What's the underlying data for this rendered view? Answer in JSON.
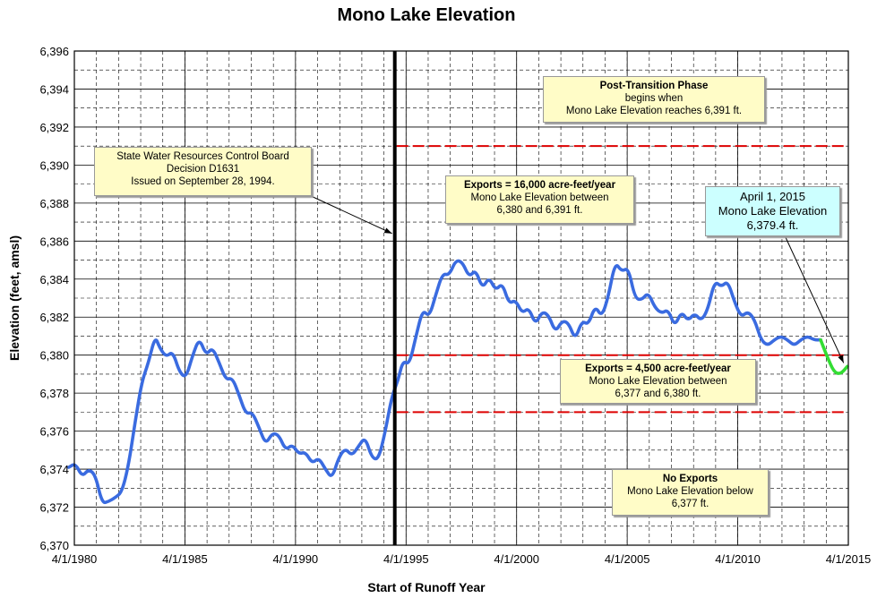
{
  "chart_data": {
    "type": "line",
    "title": "Mono Lake Elevation",
    "xlabel": "Start of Runoff Year",
    "ylabel": "Elevation (feet, amsl)",
    "ylim": [
      6370,
      6396
    ],
    "xlim": [
      1980.25,
      2015.25
    ],
    "grid": true,
    "x_ticks": [
      {
        "x": 1980.25,
        "label": "4/1/1980"
      },
      {
        "x": 1985.25,
        "label": "4/1/1985"
      },
      {
        "x": 1990.25,
        "label": "4/1/1990"
      },
      {
        "x": 1995.25,
        "label": "4/1/1995"
      },
      {
        "x": 2000.25,
        "label": "4/1/2000"
      },
      {
        "x": 2005.25,
        "label": "4/1/2005"
      },
      {
        "x": 2010.25,
        "label": "4/1/2010"
      },
      {
        "x": 2015.25,
        "label": "4/1/2015"
      }
    ],
    "y_ticks": [
      {
        "y": 6370,
        "label": "6,370"
      },
      {
        "y": 6372,
        "label": "6,372"
      },
      {
        "y": 6374,
        "label": "6,374"
      },
      {
        "y": 6376,
        "label": "6,376"
      },
      {
        "y": 6378,
        "label": "6,378"
      },
      {
        "y": 6380,
        "label": "6,380"
      },
      {
        "y": 6382,
        "label": "6,382"
      },
      {
        "y": 6384,
        "label": "6,384"
      },
      {
        "y": 6386,
        "label": "6,386"
      },
      {
        "y": 6388,
        "label": "6,388"
      },
      {
        "y": 6390,
        "label": "6,390"
      },
      {
        "y": 6392,
        "label": "6,392"
      },
      {
        "y": 6394,
        "label": "6,394"
      },
      {
        "y": 6396,
        "label": "6,396"
      }
    ],
    "series": [
      {
        "color": "#3a6be0",
        "x": [
          1980.0,
          1980.3,
          1980.6,
          1980.9,
          1981.2,
          1981.5,
          1981.8,
          1982.1,
          1982.4,
          1982.7,
          1983.0,
          1983.3,
          1983.6,
          1983.9,
          1984.1,
          1984.4,
          1984.7,
          1985.0,
          1985.3,
          1985.6,
          1985.9,
          1986.2,
          1986.5,
          1986.8,
          1987.1,
          1987.4,
          1987.7,
          1988.0,
          1988.3,
          1988.6,
          1988.9,
          1989.2,
          1989.5,
          1989.8,
          1990.1,
          1990.4,
          1990.7,
          1991.0,
          1991.3,
          1991.6,
          1991.9,
          1992.2,
          1992.5,
          1992.8,
          1993.1,
          1993.4,
          1993.7,
          1994.0,
          1994.3,
          1994.6,
          1994.9,
          1995.1,
          1995.4,
          1995.7,
          1996.0,
          1996.3,
          1996.6,
          1996.9,
          1997.2,
          1997.5,
          1997.8,
          1998.1,
          1998.4,
          1998.7,
          1999.0,
          1999.3,
          1999.6,
          1999.9,
          2000.2,
          2000.5,
          2000.8,
          2001.1,
          2001.4,
          2001.7,
          2002.0,
          2002.3,
          2002.6,
          2002.9,
          2003.2,
          2003.5,
          2003.8,
          2004.1,
          2004.4,
          2004.7,
          2005.0,
          2005.3,
          2005.6,
          2005.9,
          2006.2,
          2006.5,
          2006.8,
          2007.1,
          2007.4,
          2007.7,
          2008.0,
          2008.3,
          2008.6,
          2008.9,
          2009.2,
          2009.5,
          2009.8,
          2010.1,
          2010.4,
          2010.7,
          2011.0,
          2011.3,
          2011.6,
          2011.9,
          2012.2,
          2012.5,
          2012.8,
          2013.1,
          2013.4,
          2013.7,
          2014.0
        ],
        "values": [
          6374.1,
          6374.3,
          6373.6,
          6374.0,
          6373.7,
          6372.2,
          6372.3,
          6372.5,
          6372.8,
          6374.2,
          6376.5,
          6378.6,
          6379.6,
          6381.0,
          6380.4,
          6379.9,
          6380.2,
          6379.1,
          6378.8,
          6380.0,
          6380.9,
          6380.0,
          6380.4,
          6379.6,
          6378.7,
          6378.8,
          6377.9,
          6376.9,
          6377.0,
          6376.2,
          6375.3,
          6375.9,
          6375.8,
          6375.0,
          6375.3,
          6374.8,
          6374.9,
          6374.3,
          6374.6,
          6374.0,
          6373.5,
          6374.6,
          6375.1,
          6374.7,
          6375.2,
          6375.7,
          6374.6,
          6374.5,
          6375.9,
          6377.8,
          6378.7,
          6379.7,
          6379.5,
          6381.0,
          6382.4,
          6382.0,
          6383.2,
          6384.3,
          6384.2,
          6385.0,
          6384.9,
          6384.1,
          6384.5,
          6383.5,
          6384.1,
          6383.4,
          6383.8,
          6382.7,
          6382.9,
          6382.2,
          6382.5,
          6381.6,
          6382.3,
          6382.1,
          6381.2,
          6381.8,
          6381.7,
          6380.8,
          6381.8,
          6381.6,
          6382.6,
          6382.0,
          6383.1,
          6384.9,
          6384.4,
          6384.6,
          6383.0,
          6382.9,
          6383.3,
          6382.5,
          6382.2,
          6382.4,
          6381.5,
          6382.3,
          6381.8,
          6382.2,
          6381.8,
          6382.4,
          6383.9,
          6383.6,
          6383.9,
          6382.8,
          6382.0,
          6382.3,
          6381.9,
          6380.8,
          6380.5,
          6380.8,
          6381.0,
          6380.8,
          6380.5,
          6380.8,
          6381.0,
          6380.8,
          6380.8
        ]
      },
      {
        "color": "#33dd33",
        "x": [
          2014.0,
          2014.3,
          2014.6,
          2014.9,
          2015.2
        ],
        "values": [
          6380.8,
          6379.9,
          6379.1,
          6379.0,
          6379.4
        ]
      }
    ],
    "reference_lines": [
      {
        "y": 6391,
        "color": "#dd0000",
        "style": "dashed"
      },
      {
        "y": 6380,
        "color": "#dd0000",
        "style": "dashed"
      },
      {
        "y": 6377,
        "color": "#dd0000",
        "style": "dashed"
      }
    ],
    "vertical_line": {
      "x": 1994.74,
      "color": "#000000"
    },
    "annotations": {
      "decision": {
        "lines": [
          "State Water Resources Control Board",
          "Decision D1631",
          "Issued on September 28, 1994."
        ],
        "arrow_to": {
          "x": 1994.74,
          "y": 6386.4
        }
      },
      "post_transition": {
        "bold": "Post-Transition Phase",
        "lines": [
          "begins when",
          "Mono Lake Elevation reaches 6,391 ft."
        ]
      },
      "exports_16000": {
        "bold": "Exports = 16,000 acre-feet/year",
        "lines": [
          "Mono Lake Elevation between",
          "6,380 and 6,391 ft."
        ]
      },
      "exports_4500": {
        "bold": "Exports = 4,500 acre-feet/year",
        "lines": [
          "Mono Lake Elevation between",
          "6,377 and 6,380 ft."
        ]
      },
      "no_exports": {
        "bold": "No Exports",
        "lines": [
          "Mono Lake Elevation below",
          "6,377 ft."
        ]
      },
      "april_2015": {
        "lines": [
          "April 1, 2015",
          "Mono Lake Elevation",
          "6,379.4 ft."
        ],
        "arrow_to": {
          "x": 2015.2,
          "y": 6379.4
        }
      }
    }
  }
}
